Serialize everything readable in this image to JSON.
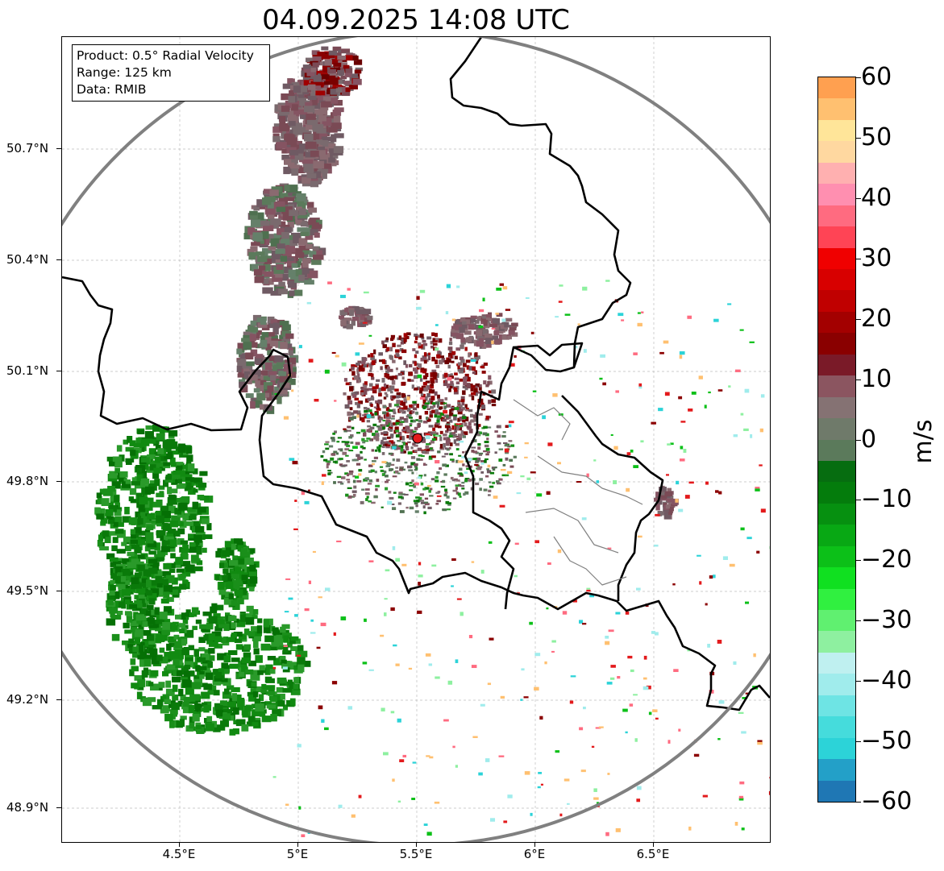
{
  "title": "04.09.2025 14:08 UTC",
  "info_box": {
    "product": "Product: 0.5° Radial Velocity",
    "range": "Range: 125 km",
    "data": "Data: RMIB"
  },
  "axes": {
    "lat_labels": [
      "50.7°N",
      "50.4°N",
      "50.1°N",
      "49.8°N",
      "49.5°N",
      "49.2°N",
      "48.9°N"
    ],
    "lon_labels": [
      "4.5°E",
      "5°E",
      "5.5°E",
      "6°E",
      "6.5°E"
    ]
  },
  "radar": {
    "site_lon": 5.5,
    "site_lat": 49.91,
    "range_km": 125
  },
  "colorbar": {
    "unit": "m/s",
    "min": -60,
    "max": 60,
    "tick_labels": [
      "60",
      "50",
      "40",
      "30",
      "20",
      "10",
      "0",
      "−10",
      "−20",
      "−30",
      "−40",
      "−50",
      "−60"
    ],
    "colors": [
      "#1f77b4",
      "#23a0c8",
      "#2cd3d8",
      "#45dcdc",
      "#6ee4e4",
      "#a0ecec",
      "#bff0f0",
      "#8ef0a0",
      "#60f070",
      "#30f040",
      "#10e020",
      "#0cc018",
      "#08a814",
      "#069010",
      "#047c0c",
      "#066d10",
      "#5b7a5b",
      "#6f7a6a",
      "#857273",
      "#8b5560",
      "#7a1a28",
      "#8a0000",
      "#a30000",
      "#c00000",
      "#d80000",
      "#f00000",
      "#ff4455",
      "#ff6b80",
      "#ff8fb0",
      "#ffb0b0",
      "#ffd8a0",
      "#ffe599",
      "#ffc070",
      "#ffa050"
    ]
  },
  "colors": {
    "border": "#000000",
    "range_ring": "#808080",
    "grid": "#bdbdbd",
    "radar_site": "#e31a1c",
    "receding": "#8b0000",
    "approaching": "#007a00",
    "near_zero": "#7a6a6e"
  }
}
